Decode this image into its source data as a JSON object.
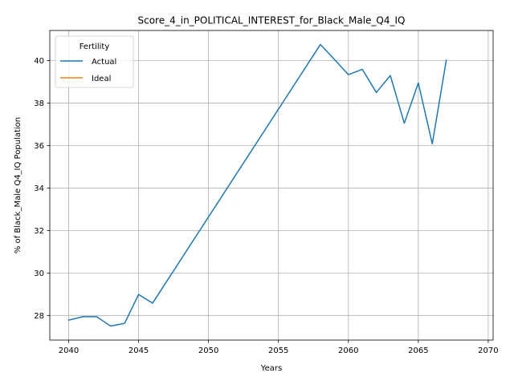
{
  "chart_data": {
    "type": "line",
    "title": "Score_4_in_POLITICAL_INTEREST_for_Black_Male_Q4_IQ",
    "xlabel": "Years",
    "ylabel": "% of Black_Male Q4_IQ Population",
    "xlim": [
      2038.65,
      2070.35
    ],
    "ylim": [
      26.84,
      41.42
    ],
    "xticks": [
      2040,
      2045,
      2050,
      2055,
      2060,
      2065,
      2070
    ],
    "yticks": [
      28,
      30,
      32,
      34,
      36,
      38,
      40
    ],
    "grid": true,
    "legend": {
      "title": "Fertility",
      "position": "upper-left"
    },
    "series": [
      {
        "name": "Actual",
        "color": "#1f77b4",
        "x": [
          2040,
          2041,
          2042,
          2043,
          2044,
          2045,
          2046,
          2058,
          2059,
          2060,
          2061,
          2062,
          2063,
          2064,
          2065,
          2066,
          2067
        ],
        "y": [
          27.78,
          27.94,
          27.94,
          27.5,
          27.63,
          28.99,
          28.58,
          40.76,
          40.06,
          39.34,
          39.59,
          38.5,
          39.3,
          37.05,
          38.95,
          36.08,
          40.02
        ]
      },
      {
        "name": "Ideal",
        "color": "#ff7f0e",
        "x": [],
        "y": []
      }
    ]
  }
}
